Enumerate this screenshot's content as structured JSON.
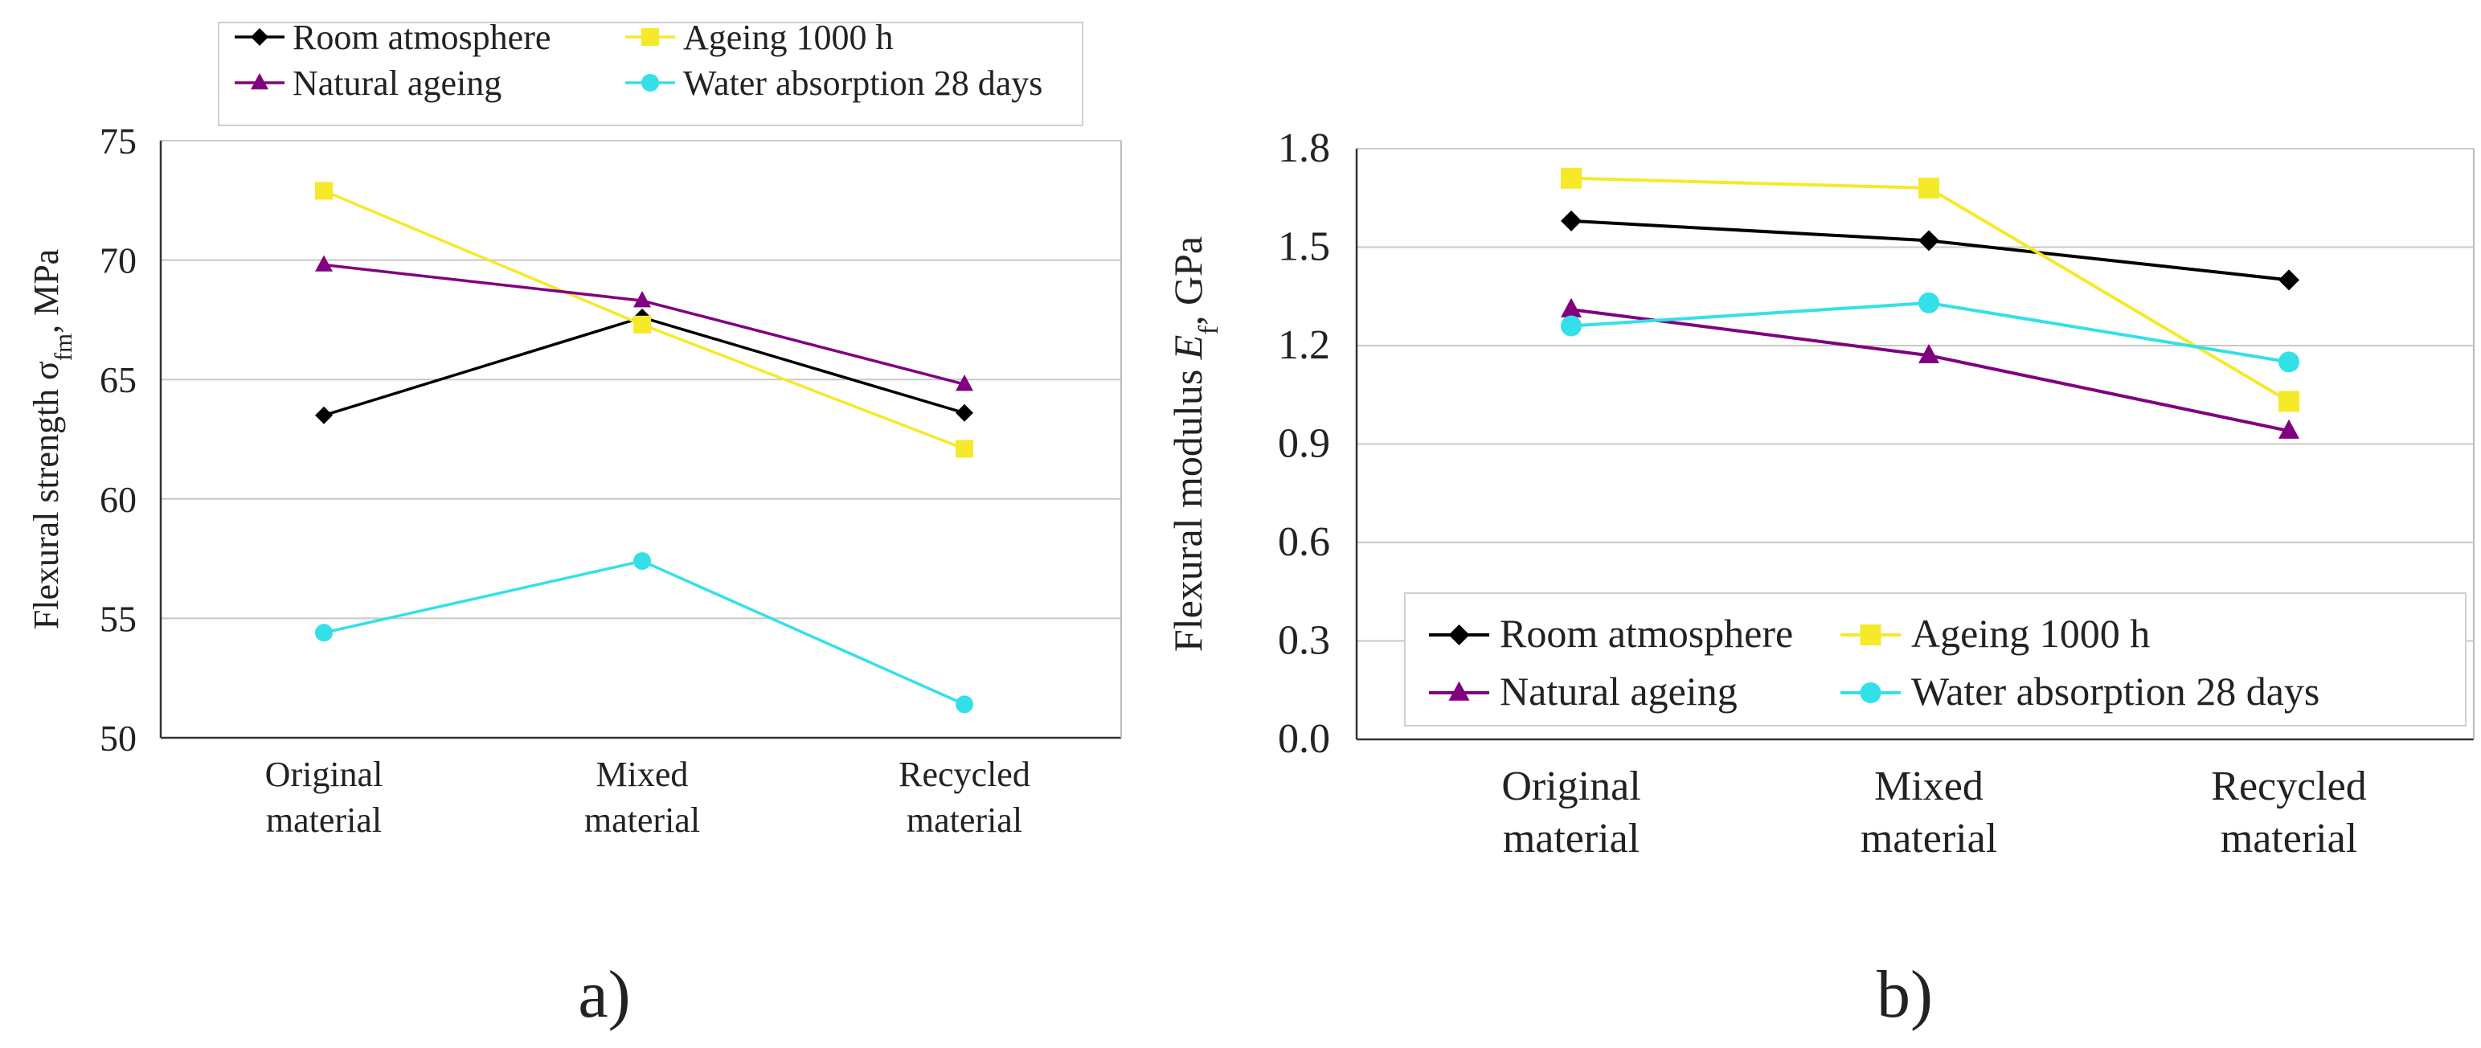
{
  "chart_data": [
    {
      "type": "line",
      "panel_label": "a)",
      "ylabel": {
        "base": "Flexural strength σ",
        "sub": "fm",
        "unit": ", MPa"
      },
      "xlabel": "",
      "ylim": [
        50,
        75
      ],
      "yticks": [
        "50",
        "55",
        "60",
        "65",
        "70",
        "75"
      ],
      "grid": true,
      "legend_position": "top",
      "categories": [
        [
          "Original",
          "material"
        ],
        [
          "Mixed",
          "material"
        ],
        [
          "Recycled",
          "material"
        ]
      ],
      "series": [
        {
          "name": "Room atmosphere",
          "color": "#000000",
          "marker": "diamond",
          "values": [
            63.5,
            67.6,
            63.6
          ]
        },
        {
          "name": "Ageing 1000 h",
          "color": "#f5e92a",
          "marker": "square",
          "values": [
            72.9,
            67.3,
            62.1
          ]
        },
        {
          "name": "Natural ageing",
          "color": "#800080",
          "marker": "triangle",
          "values": [
            69.8,
            68.3,
            64.8
          ]
        },
        {
          "name": "Water absorption 28 days",
          "color": "#33e0e8",
          "marker": "circle",
          "values": [
            54.4,
            57.4,
            51.4
          ]
        }
      ]
    },
    {
      "type": "line",
      "panel_label": "b)",
      "ylabel": {
        "base": "Flexural modulus ",
        "italic": "E",
        "sub": "f",
        "unit": ", GPa"
      },
      "xlabel": "",
      "ylim": [
        0.0,
        1.8
      ],
      "yticks": [
        "0.0",
        "0.3",
        "0.6",
        "0.9",
        "1.2",
        "1.5",
        "1.8"
      ],
      "grid": true,
      "legend_position": "bottom-right",
      "categories": [
        [
          "Original",
          "material"
        ],
        [
          "Mixed",
          "material"
        ],
        [
          "Recycled",
          "material"
        ]
      ],
      "series": [
        {
          "name": "Room atmosphere",
          "color": "#000000",
          "marker": "diamond",
          "values": [
            1.58,
            1.52,
            1.4
          ]
        },
        {
          "name": "Ageing 1000 h",
          "color": "#f5e92a",
          "marker": "square",
          "values": [
            1.71,
            1.68,
            1.03
          ]
        },
        {
          "name": "Natural ageing",
          "color": "#800080",
          "marker": "triangle",
          "values": [
            1.31,
            1.17,
            0.94
          ]
        },
        {
          "name": "Water absorption 28 days",
          "color": "#33e0e8",
          "marker": "circle",
          "values": [
            1.26,
            1.33,
            1.15
          ]
        }
      ]
    }
  ]
}
